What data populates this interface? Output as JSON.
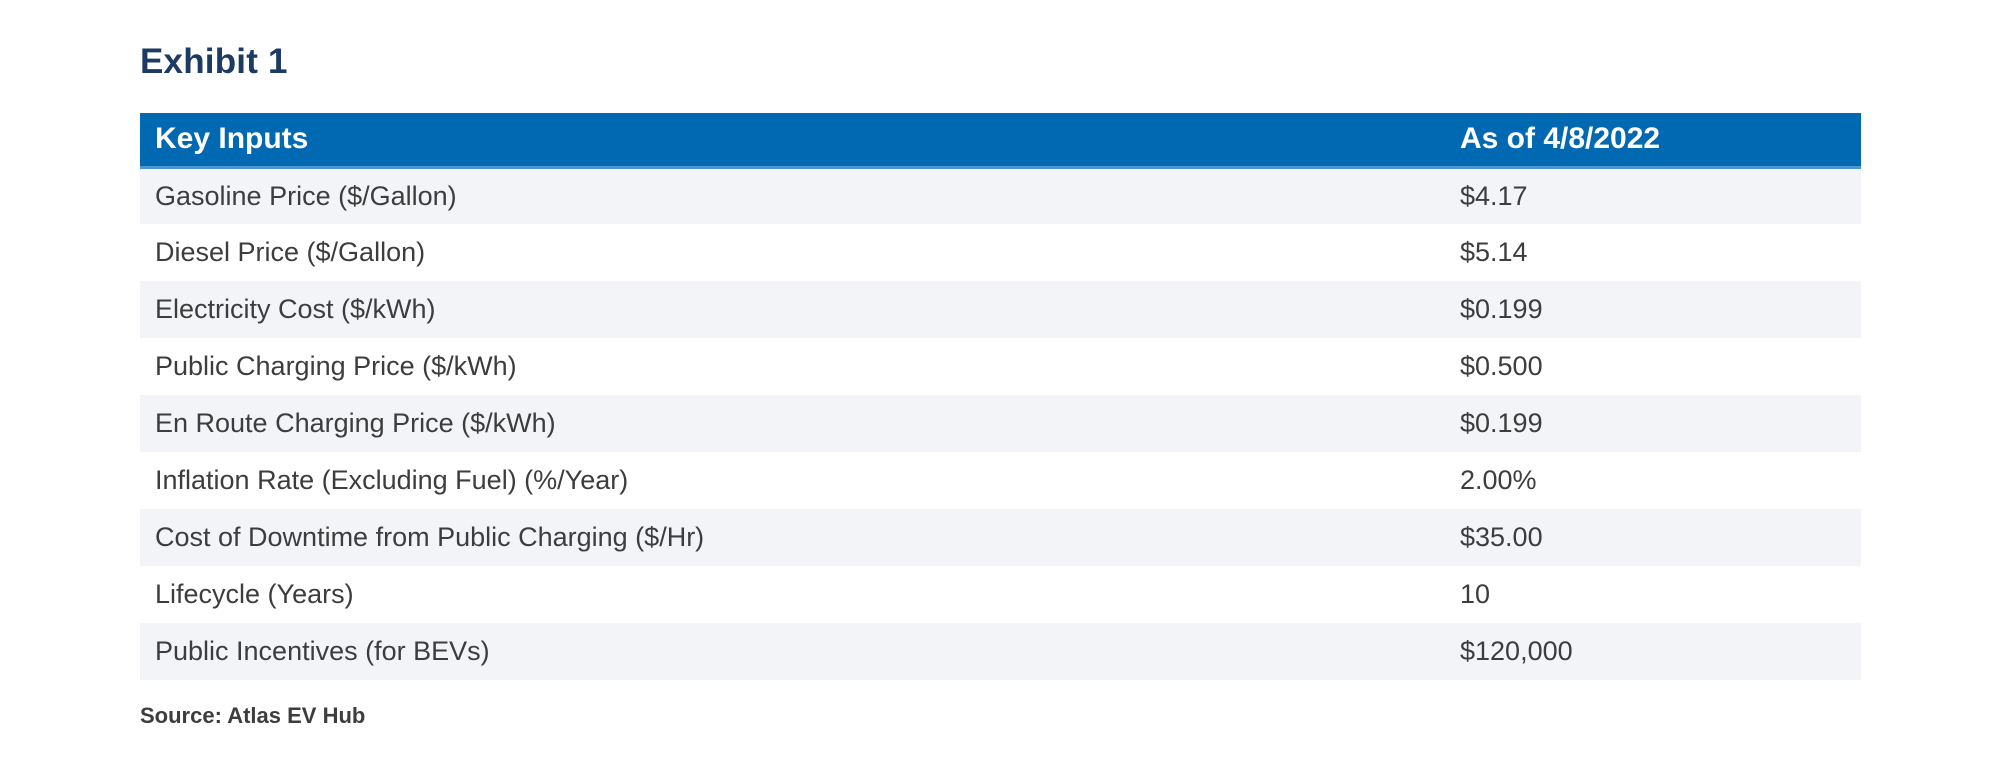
{
  "exhibit": {
    "title": "Exhibit 1"
  },
  "table": {
    "header": {
      "label_col": "Key Inputs",
      "value_col": "As of 4/8/2022"
    },
    "rows": [
      {
        "label": "Gasoline Price ($/Gallon)",
        "value": "$4.17"
      },
      {
        "label": "Diesel Price ($/Gallon)",
        "value": "$5.14"
      },
      {
        "label": "Electricity Cost ($/kWh)",
        "value": "$0.199"
      },
      {
        "label": "Public Charging Price ($/kWh)",
        "value": "$0.500"
      },
      {
        "label": "En Route Charging Price ($/kWh)",
        "value": "$0.199"
      },
      {
        "label": "Inflation Rate (Excluding Fuel) (%/Year)",
        "value": "2.00%"
      },
      {
        "label": "Cost of Downtime from Public Charging ($/Hr)",
        "value": "$35.00"
      },
      {
        "label": "Lifecycle (Years)",
        "value": "10"
      },
      {
        "label": "Public Incentives (for BEVs)",
        "value": "$120,000"
      }
    ]
  },
  "source": {
    "text": "Source: Atlas EV Hub"
  },
  "colors": {
    "header_bg": "#0169b2",
    "header_accent": "#4d97d0",
    "row_alt": "#f2f4f8",
    "text": "#3d3d3d",
    "title": "#1d3a64",
    "page_bg": "#ffffff"
  }
}
